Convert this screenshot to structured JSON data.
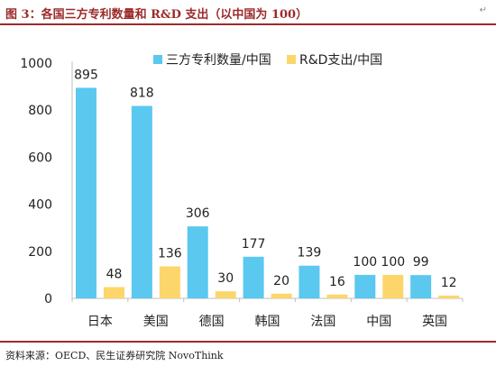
{
  "header": {
    "title": "图 3：各国三方专利数量和 R&D 支出（以中国为 100）",
    "mark": "↵"
  },
  "footer": {
    "source": "资料来源：OECD、民生证券研究院 NovoThink"
  },
  "colors": {
    "series1": "#5bc8f0",
    "series2": "#fcd66a",
    "axis": "#bfbfbf",
    "title": "#9c2a2a"
  },
  "chart_data": {
    "type": "bar",
    "title": "",
    "xlabel": "",
    "ylabel": "",
    "ylim": [
      0,
      1000
    ],
    "yticks": [
      "0",
      "200",
      "400",
      "600",
      "800",
      "1000"
    ],
    "grid": false,
    "legend_position": "top",
    "categories": [
      "日本",
      "美国",
      "德国",
      "韩国",
      "法国",
      "中国",
      "英国"
    ],
    "series": [
      {
        "name": "三方专利数量/中国",
        "values": [
          895,
          818,
          306,
          177,
          139,
          100,
          99
        ]
      },
      {
        "name": "R&D支出/中国",
        "values": [
          48,
          136,
          30,
          20,
          16,
          100,
          12
        ]
      }
    ]
  }
}
